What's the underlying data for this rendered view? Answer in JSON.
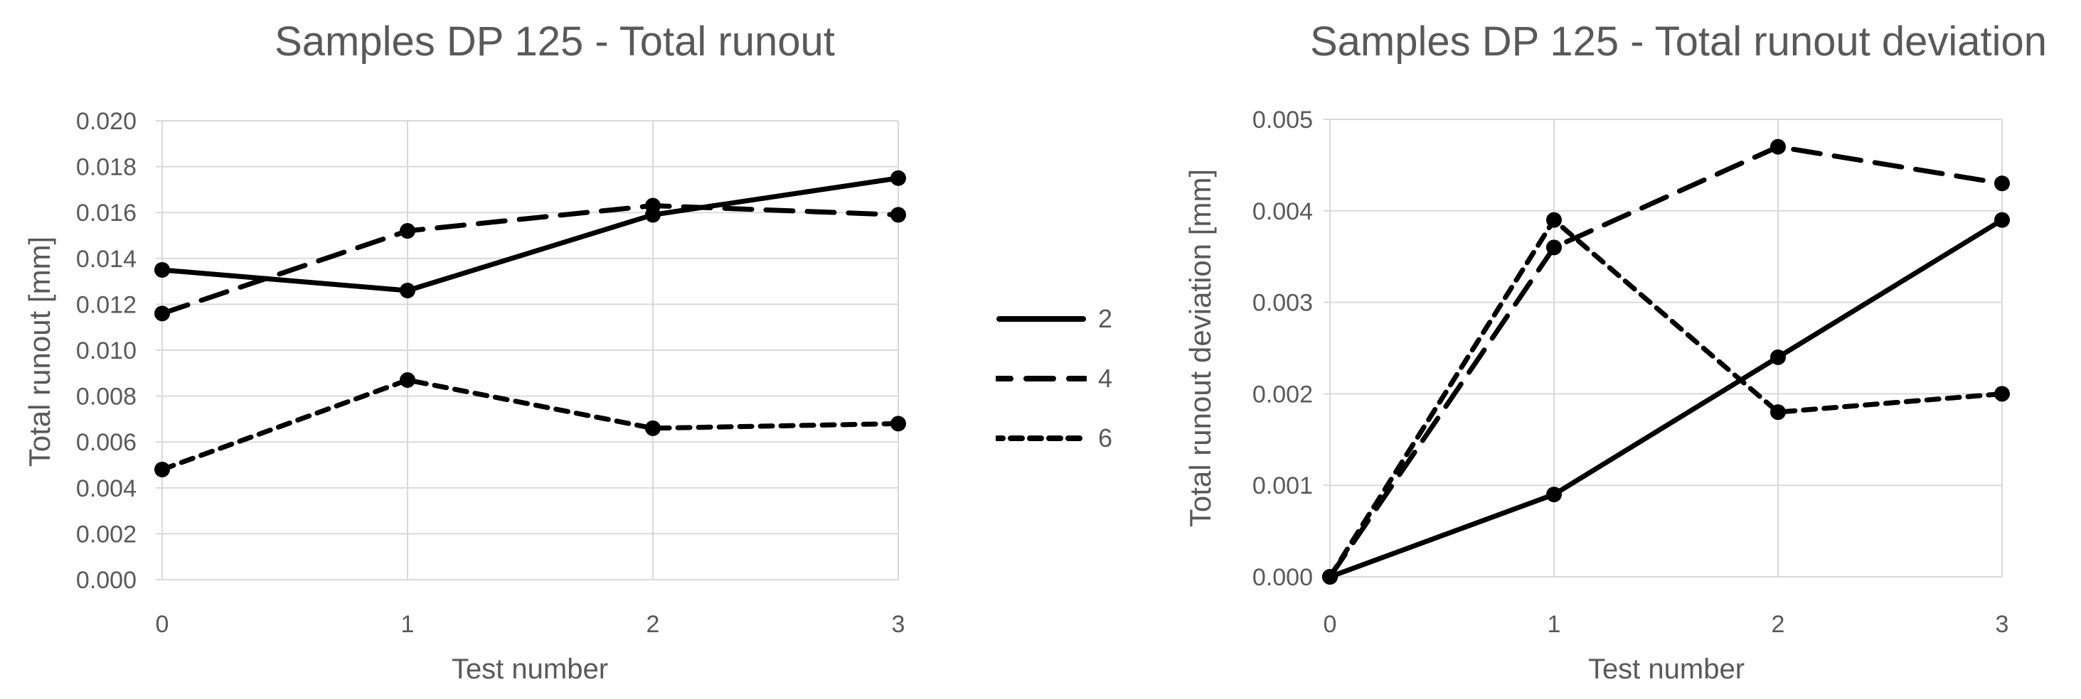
{
  "page": {
    "background": "#ffffff"
  },
  "colors": {
    "text": "#595959",
    "gridline": "#d9d9d9",
    "series_line": "#000000",
    "background": "#ffffff"
  },
  "legend": {
    "position": "between-charts",
    "items": [
      {
        "label": "2",
        "style": "solid"
      },
      {
        "label": "4",
        "style": "long-dash"
      },
      {
        "label": "6",
        "style": "short-dash"
      }
    ]
  },
  "chart_data": [
    {
      "type": "line",
      "title": "Samples DP 125 - Total runout",
      "xlabel": "Test number",
      "ylabel": "Total runout [mm]",
      "x": [
        0,
        1,
        2,
        3
      ],
      "xticks": [
        0,
        1,
        2,
        3
      ],
      "xlim": [
        0,
        3
      ],
      "ylim": [
        0,
        0.02
      ],
      "yticks": [
        0,
        0.002,
        0.004,
        0.006,
        0.008,
        0.01,
        0.012,
        0.014,
        0.016,
        0.018,
        0.02
      ],
      "ytick_decimals": 3,
      "grid": true,
      "marker": "filled-circle",
      "series": [
        {
          "name": "2",
          "style": "solid",
          "values": [
            0.0135,
            0.0126,
            0.0159,
            0.0175
          ]
        },
        {
          "name": "4",
          "style": "long-dash",
          "values": [
            0.0116,
            0.0152,
            0.0163,
            0.0159
          ]
        },
        {
          "name": "6",
          "style": "short-dash",
          "values": [
            0.0048,
            0.0087,
            0.0066,
            0.0068
          ]
        }
      ]
    },
    {
      "type": "line",
      "title": "Samples DP 125 - Total runout deviation",
      "xlabel": "Test number",
      "ylabel": "Total runout deviation [mm]",
      "x": [
        0,
        1,
        2,
        3
      ],
      "xticks": [
        0,
        1,
        2,
        3
      ],
      "xlim": [
        0,
        3
      ],
      "ylim": [
        0,
        0.005
      ],
      "yticks": [
        0,
        0.001,
        0.002,
        0.003,
        0.004,
        0.005
      ],
      "ytick_decimals": 3,
      "grid": true,
      "marker": "filled-circle",
      "series": [
        {
          "name": "2",
          "style": "solid",
          "values": [
            0.0,
            0.0009,
            0.0024,
            0.0039
          ]
        },
        {
          "name": "4",
          "style": "long-dash",
          "values": [
            0.0,
            0.0036,
            0.0047,
            0.0043
          ]
        },
        {
          "name": "6",
          "style": "short-dash",
          "values": [
            0.0,
            0.0039,
            0.0018,
            0.002
          ]
        }
      ]
    }
  ]
}
